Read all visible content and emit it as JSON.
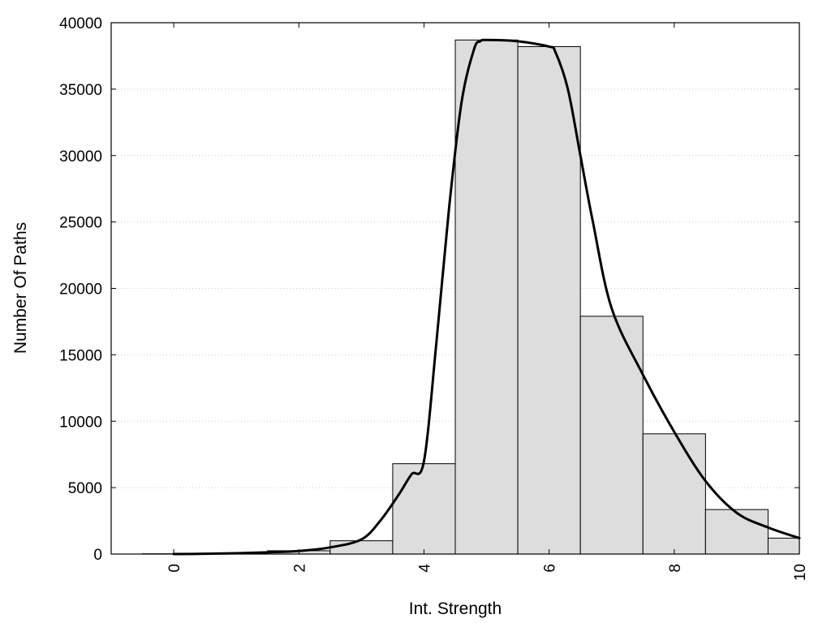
{
  "chart_data": {
    "type": "bar",
    "xlabel": "Int. Strength",
    "ylabel": "Number Of Paths",
    "xlim": [
      -1,
      10
    ],
    "ylim": [
      0,
      40000
    ],
    "x_ticks": [
      0,
      2,
      4,
      6,
      8,
      10
    ],
    "x_tick_labels": [
      "0",
      "2",
      "4",
      "6",
      "8",
      "10"
    ],
    "y_ticks": [
      0,
      5000,
      10000,
      15000,
      20000,
      25000,
      30000,
      35000,
      40000
    ],
    "y_tick_labels": [
      "0",
      "5000",
      "10000",
      "15000",
      "20000",
      "25000",
      "30000",
      "35000",
      "40000"
    ],
    "grid": "horizontal dotted",
    "bin_width": 1,
    "bars": [
      {
        "x": 0,
        "value": 20
      },
      {
        "x": 1,
        "value": 60
      },
      {
        "x": 2,
        "value": 250
      },
      {
        "x": 3,
        "value": 1000
      },
      {
        "x": 4,
        "value": 6800
      },
      {
        "x": 5,
        "value": 38700
      },
      {
        "x": 6,
        "value": 38200
      },
      {
        "x": 7,
        "value": 17900
      },
      {
        "x": 8,
        "value": 9050
      },
      {
        "x": 9,
        "value": 3350
      },
      {
        "x": 10,
        "value": 1200
      }
    ],
    "curve": {
      "x": [
        0,
        0.5,
        1,
        1.5,
        2,
        2.5,
        3,
        3.3,
        3.6,
        3.8,
        4.0,
        4.2,
        4.4,
        4.6,
        4.8,
        4.9,
        5.0,
        5.5,
        6.0,
        6.1,
        6.3,
        6.5,
        6.7,
        7.0,
        7.5,
        8.0,
        8.5,
        9.0,
        9.5,
        10.0
      ],
      "y": [
        0,
        20,
        60,
        130,
        230,
        500,
        1100,
        2500,
        4500,
        6000,
        7000,
        16000,
        26000,
        34000,
        38000,
        38600,
        38700,
        38600,
        38200,
        37800,
        35000,
        30000,
        25000,
        18500,
        13500,
        9200,
        5500,
        3100,
        2000,
        1200
      ],
      "color": "#000000"
    },
    "bar_color": "#dddddd"
  }
}
